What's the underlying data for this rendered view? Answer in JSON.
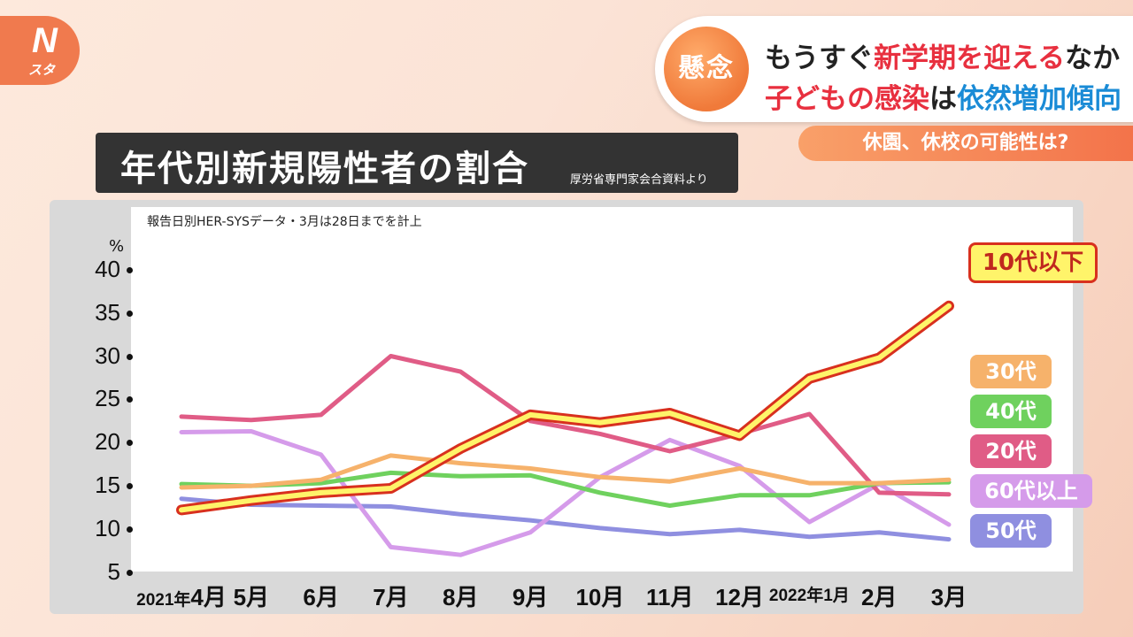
{
  "logo": {
    "letter": "N",
    "sub": "スタ"
  },
  "headline": {
    "badge": "懸念",
    "line1": [
      "もうすぐ",
      "新学期を迎える",
      "なか"
    ],
    "line2": [
      "子どもの感染",
      "は",
      "依然増加傾向"
    ]
  },
  "subtag": "休園、休校の可能性は?",
  "title": "年代別新規陽性者の割合",
  "source": "厚労省専門家会合資料より",
  "note": "報告日別HER-SYSデータ・3月は28日までを計上",
  "y_unit": "%",
  "colors": {
    "u10": "#fff46a",
    "u10_outline": "#d8301e",
    "s30": "#f6b26b",
    "s40": "#6fd15e",
    "s20": "#e05c86",
    "s60": "#d59bea",
    "s50": "#8f8fe0"
  },
  "chart_data": {
    "type": "line",
    "title": "年代別新規陽性者の割合",
    "ylabel": "%",
    "ylim": [
      0,
      40
    ],
    "yticks": [
      5,
      10,
      15,
      20,
      25,
      30,
      35,
      40
    ],
    "categories": [
      "2021年4月",
      "5月",
      "6月",
      "7月",
      "8月",
      "9月",
      "10月",
      "11月",
      "12月",
      "2022年1月",
      "2月",
      "3月"
    ],
    "series": [
      {
        "name": "10代以下",
        "values": [
          12.2,
          13.3,
          14.2,
          14.7,
          19.3,
          23.2,
          22.3,
          23.4,
          20.8,
          27.4,
          29.8,
          35.8
        ]
      },
      {
        "name": "30代",
        "values": [
          14.8,
          15.0,
          15.7,
          18.5,
          17.6,
          17.0,
          16.0,
          15.5,
          17.0,
          15.3,
          15.3,
          15.7
        ]
      },
      {
        "name": "40代",
        "values": [
          15.2,
          15.0,
          15.3,
          16.5,
          16.1,
          16.2,
          14.2,
          12.7,
          13.9,
          13.9,
          15.3,
          15.4
        ]
      },
      {
        "name": "20代",
        "values": [
          23.0,
          22.6,
          23.2,
          30.0,
          28.2,
          22.5,
          21.0,
          19.0,
          21.0,
          23.3,
          14.2,
          14.0
        ]
      },
      {
        "name": "60代以上",
        "values": [
          21.2,
          21.3,
          18.6,
          7.9,
          7.0,
          9.6,
          16.0,
          20.3,
          17.3,
          10.8,
          15.2,
          10.5
        ]
      },
      {
        "name": "50代",
        "values": [
          13.5,
          12.8,
          12.7,
          12.6,
          11.7,
          11.0,
          10.1,
          9.4,
          9.9,
          9.1,
          9.6,
          8.8
        ]
      }
    ]
  }
}
